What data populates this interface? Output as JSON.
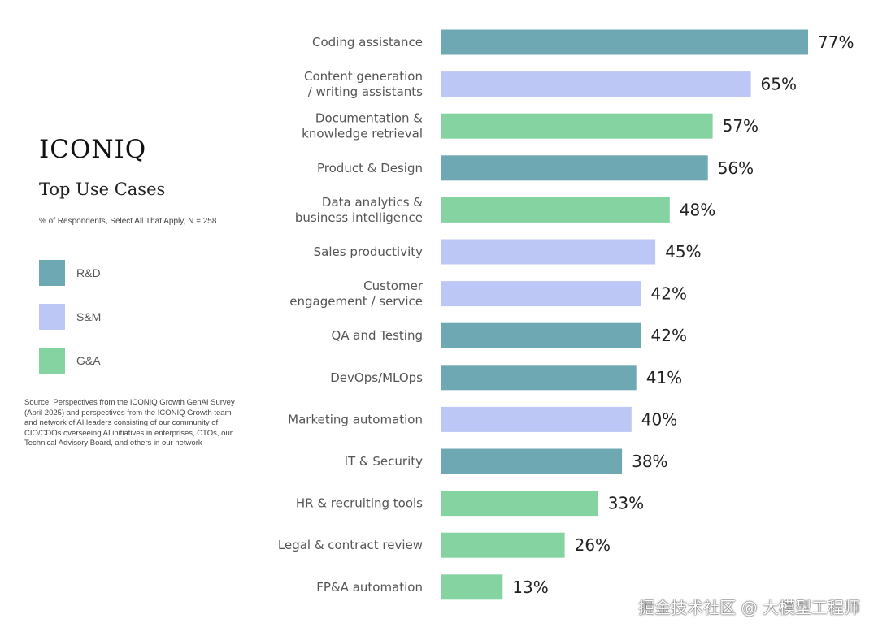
{
  "brand": "ICONIQ",
  "title": "Top Use Cases",
  "subtitle": "% of Respondents, Select All That Apply, N = 258",
  "legend": [
    {
      "key": "rd",
      "label": "R&D",
      "color": "#6ea8b3"
    },
    {
      "key": "sm",
      "label": "S&M",
      "color": "#bdc7f5"
    },
    {
      "key": "ga",
      "label": "G&A",
      "color": "#86d3a2"
    }
  ],
  "source": "Source: Perspectives from the ICONIQ Growth GenAI Survey (April 2025) and perspectives from the ICONIQ Growth team and network of AI leaders consisting of our community of CIO/CDOs overseeing AI initiatives in enterprises, CTOs, our Technical Advisory Board, and others in our network",
  "watermark": "掘金技术社区 @ 大模型工程师",
  "chart_data": {
    "type": "bar",
    "orientation": "horizontal",
    "title": "Top Use Cases",
    "xlabel": "",
    "ylabel": "",
    "xlim": [
      0,
      100
    ],
    "value_suffix": "%",
    "categories": [
      [
        "Coding assistance"
      ],
      [
        "Content generation",
        "/ writing assistants"
      ],
      [
        "Documentation &",
        "knowledge retrieval"
      ],
      [
        "Product & Design"
      ],
      [
        "Data analytics &",
        "business intelligence"
      ],
      [
        "Sales productivity"
      ],
      [
        "Customer",
        "engagement / service"
      ],
      [
        "QA and Testing"
      ],
      [
        "DevOps/MLOps"
      ],
      [
        "Marketing automation"
      ],
      [
        "IT & Security"
      ],
      [
        "HR & recruiting tools"
      ],
      [
        "Legal & contract review"
      ],
      [
        "FP&A automation"
      ]
    ],
    "values": [
      77,
      65,
      57,
      56,
      48,
      45,
      42,
      42,
      41,
      40,
      38,
      33,
      26,
      13
    ],
    "groups": [
      "rd",
      "sm",
      "ga",
      "rd",
      "ga",
      "sm",
      "sm",
      "rd",
      "rd",
      "sm",
      "rd",
      "ga",
      "ga",
      "ga"
    ]
  }
}
